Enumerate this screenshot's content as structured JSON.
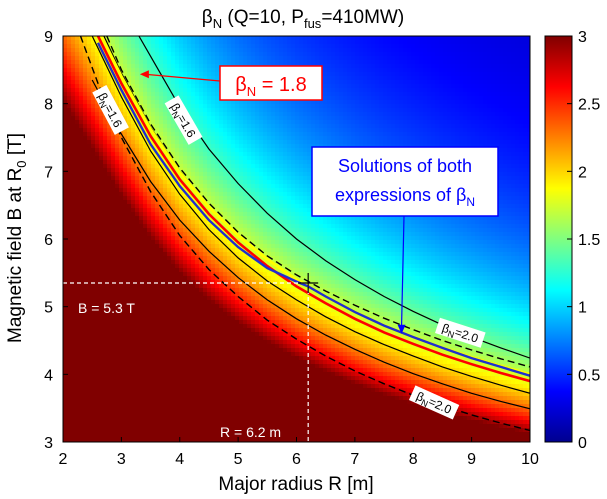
{
  "chart_data": {
    "type": "heatmap",
    "title_main": "β",
    "title_sub": "N",
    "title_rest": "  (Q=10, P",
    "title_sub2": "fus",
    "title_end": "=410MW)",
    "xlabel": "Major radius R [m]",
    "ylabel_main": "Magnetic field B at R",
    "ylabel_sub": "0",
    "ylabel_end": " [T]",
    "xlim": [
      2,
      10
    ],
    "ylim": [
      3,
      9
    ],
    "xticks": [
      "2",
      "3",
      "4",
      "5",
      "6",
      "7",
      "8",
      "9",
      "10"
    ],
    "yticks": [
      "3",
      "4",
      "5",
      "6",
      "7",
      "8",
      "9"
    ],
    "colorbar": {
      "range": [
        0,
        3
      ],
      "ticks": [
        "0",
        "0.5",
        "1",
        "1.5",
        "2",
        "2.5",
        "3"
      ],
      "colormap": [
        "#00008f",
        "#0000ff",
        "#0080ff",
        "#00ffff",
        "#80ff80",
        "#ffff00",
        "#ff8000",
        "#ff0000",
        "#800000"
      ]
    },
    "colors": {
      "red_curve": "#ff0000",
      "yellow_curve": "#ffff00",
      "blue_curve": "#1f2fd0",
      "black_curve": "#000000",
      "box_border_red": "#ff0000",
      "box_border_blue": "#0000ff"
    },
    "red_curve_x": [
      2.6,
      3.0,
      3.5,
      4.0,
      4.5,
      5.0,
      5.5,
      6.0,
      6.5,
      7.0,
      7.5,
      8.0,
      8.5,
      9.0,
      9.5,
      10.0
    ],
    "red_curve_y": [
      9.0,
      8.3,
      7.52,
      6.88,
      6.37,
      5.95,
      5.6,
      5.3,
      5.05,
      4.82,
      4.62,
      4.45,
      4.29,
      4.15,
      4.02,
      3.9
    ],
    "blue_curve_x": [
      2.6,
      3.0,
      3.5,
      4.0,
      4.5,
      5.0,
      5.5,
      6.0,
      6.2,
      6.5,
      7.0,
      7.5,
      8.0,
      8.5,
      9.0,
      9.5,
      10.0
    ],
    "blue_curve_y": [
      8.9,
      8.2,
      7.4,
      6.78,
      6.28,
      5.88,
      5.57,
      5.37,
      5.3,
      5.15,
      4.92,
      4.72,
      4.55,
      4.39,
      4.24,
      4.11,
      3.98
    ],
    "solid_black_curves": [
      {
        "x": [
          2.7,
          3.0,
          3.5,
          4.0,
          4.5,
          5.0,
          5.5,
          6.0,
          6.5,
          7.0,
          7.5,
          8.0,
          8.5,
          9.0,
          9.5,
          10.0
        ],
        "y": [
          9.0,
          8.45,
          7.65,
          7.0,
          6.48,
          6.05,
          5.7,
          5.4,
          5.15,
          4.92,
          4.72,
          4.55,
          4.4,
          4.26,
          4.13,
          4.01
        ]
      },
      {
        "x": [
          2.5,
          3.0,
          3.5,
          4.0,
          4.5,
          5.0,
          5.5,
          6.0,
          6.5,
          7.0,
          7.5,
          8.0,
          8.5,
          9.0,
          9.5,
          10.0
        ],
        "y": [
          9.0,
          8.1,
          7.3,
          6.66,
          6.14,
          5.72,
          5.38,
          5.1,
          4.85,
          4.63,
          4.44,
          4.27,
          4.11,
          3.97,
          3.84,
          3.72
        ]
      },
      {
        "x": [
          3.3,
          3.5,
          4.0,
          4.5,
          5.0,
          5.5,
          6.0,
          6.5,
          7.0,
          7.5,
          8.0,
          8.5,
          9.0,
          9.5,
          10.0
        ],
        "y": [
          9.0,
          8.7,
          7.95,
          7.33,
          6.82,
          6.38,
          6.0,
          5.68,
          5.4,
          5.15,
          4.93,
          4.73,
          4.55,
          4.39,
          4.24
        ]
      },
      {
        "x": [
          2.5,
          3.0,
          3.5,
          4.0,
          4.5,
          5.0,
          5.5,
          6.0,
          6.5,
          7.0,
          7.5,
          8.0,
          8.5,
          9.0,
          9.5,
          10.0
        ],
        "y": [
          8.35,
          7.55,
          6.85,
          6.28,
          5.82,
          5.43,
          5.1,
          4.82,
          4.58,
          4.37,
          4.18,
          4.01,
          3.86,
          3.72,
          3.6,
          3.49
        ]
      }
    ],
    "dashed_black_curves": [
      {
        "x": [
          2.3,
          2.6,
          3.0,
          3.5,
          4.0,
          4.5,
          5.0,
          5.5,
          6.0,
          6.5,
          7.0,
          7.5,
          8.0,
          8.5,
          9.0,
          9.5,
          10.0
        ],
        "y": [
          9.0,
          8.3,
          7.5,
          6.7,
          6.05,
          5.55,
          5.15,
          4.8,
          4.52,
          4.27,
          4.05,
          3.86,
          3.69,
          3.54,
          3.4,
          3.28,
          3.17
        ]
      },
      {
        "x": [
          2.75,
          3.0,
          3.5,
          4.0,
          4.5,
          5.0,
          5.5,
          6.0,
          6.5,
          7.0,
          7.5,
          8.0,
          8.5,
          9.0,
          9.5,
          10.0
        ],
        "y": [
          9.0,
          8.5,
          7.7,
          7.05,
          6.53,
          6.1,
          5.75,
          5.47,
          5.23,
          5.02,
          4.83,
          4.66,
          4.5,
          4.36,
          4.23,
          4.11
        ]
      }
    ],
    "curve_labels": [
      {
        "text_main": "β",
        "text_sub": "N",
        "text_end": "=1.6",
        "x": 2.8,
        "y": 7.9,
        "angle": 62
      },
      {
        "text_main": "β",
        "text_sub": "N",
        "text_end": "=1.6",
        "x": 4.05,
        "y": 7.75,
        "angle": 60
      },
      {
        "text_main": "β",
        "text_sub": "N",
        "text_end": "=2.0",
        "x": 8.8,
        "y": 4.6,
        "angle": 18
      },
      {
        "text_main": "β",
        "text_sub": "N",
        "text_end": "=2.0",
        "x": 8.35,
        "y": 3.57,
        "angle": 24
      }
    ],
    "crosshair": {
      "x": 6.2,
      "y": 5.35
    },
    "annotation_B": "B = 5.3 T",
    "annotation_R": "R = 6.2 m",
    "box_red": {
      "text_main": "β",
      "text_sub": "N",
      "text_end": " = 1.8",
      "arrow_to": [
        3.3,
        8.45
      ]
    },
    "box_blue": {
      "line1": "Solutions of both",
      "line2_main": "expressions of β",
      "line2_sub": "N",
      "arrow_to": [
        7.8,
        4.6
      ]
    }
  }
}
